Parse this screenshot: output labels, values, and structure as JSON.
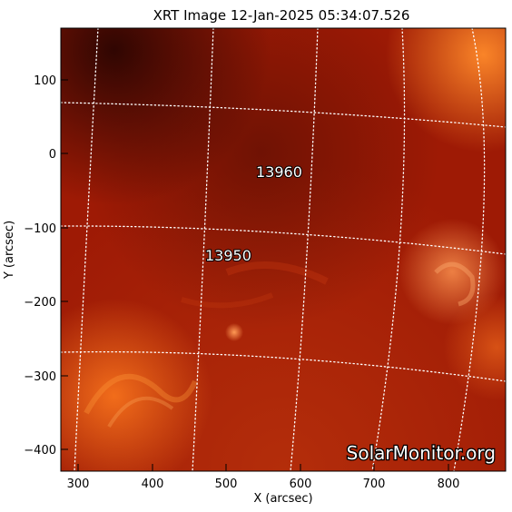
{
  "title": "XRT Image 12-Jan-2025 05:34:07.526",
  "axes": {
    "xlabel": "X (arcsec)",
    "ylabel": "Y (arcsec)",
    "x_ticks": [
      "300",
      "400",
      "500",
      "600",
      "700",
      "800"
    ],
    "y_ticks": [
      "100",
      "0",
      "−100",
      "−200",
      "−300",
      "−400"
    ],
    "xlim": [
      278,
      878
    ],
    "ylim": [
      -430,
      170
    ]
  },
  "regions": [
    {
      "id": "13960"
    },
    {
      "id": "13950"
    }
  ],
  "watermark": "SolarMonitor.org",
  "colors": {
    "background": "#ffffff",
    "sun_base": "#9e1a05",
    "sun_dark": "#4a0c03",
    "sun_bright": "#ff7a1e",
    "grid": "#ffffff"
  }
}
